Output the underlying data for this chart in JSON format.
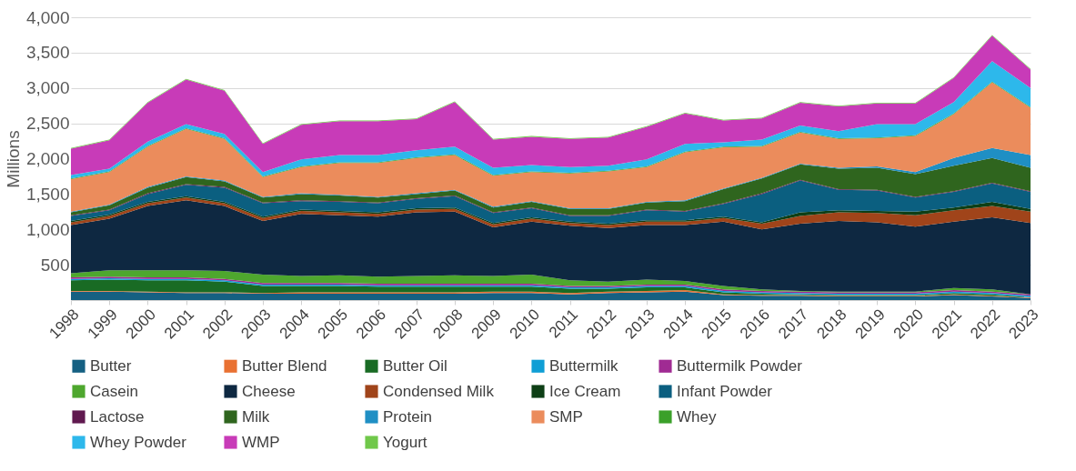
{
  "chart_data": {
    "type": "area",
    "stacked": true,
    "ylabel": "Millions",
    "categories": [
      "1998",
      "1999",
      "2000",
      "2001",
      "2002",
      "2003",
      "2004",
      "2005",
      "2006",
      "2007",
      "2008",
      "2009",
      "2010",
      "2011",
      "2012",
      "2013",
      "2014",
      "2015",
      "2016",
      "2017",
      "2018",
      "2019",
      "2020",
      "2021",
      "2022",
      "2023"
    ],
    "ylim": [
      0,
      4000
    ],
    "yticks": [
      {
        "value": 500,
        "label": "500"
      },
      {
        "value": 1000,
        "label": "1,000"
      },
      {
        "value": 1500,
        "label": "1,500"
      },
      {
        "value": 2000,
        "label": "2,000"
      },
      {
        "value": 2500,
        "label": "2,500"
      },
      {
        "value": 3000,
        "label": "3,000"
      },
      {
        "value": 3500,
        "label": "3,500"
      },
      {
        "value": 4000,
        "label": "4,000"
      }
    ],
    "grid": "y",
    "legend": "bottom",
    "series": [
      {
        "name": "Butter",
        "color": "#156082",
        "values": [
          120,
          120,
          110,
          100,
          100,
          90,
          90,
          90,
          90,
          90,
          90,
          100,
          100,
          80,
          100,
          110,
          120,
          70,
          60,
          60,
          50,
          50,
          50,
          70,
          50,
          30
        ]
      },
      {
        "name": "Butter Blend",
        "color": "#e97132",
        "values": [
          10,
          10,
          10,
          10,
          10,
          10,
          20,
          20,
          20,
          20,
          20,
          20,
          20,
          20,
          20,
          20,
          20,
          10,
          10,
          10,
          10,
          10,
          10,
          10,
          10,
          10
        ]
      },
      {
        "name": "Butter Oil",
        "color": "#196b24",
        "values": [
          150,
          160,
          160,
          170,
          150,
          100,
          90,
          90,
          80,
          80,
          80,
          70,
          70,
          60,
          40,
          50,
          40,
          30,
          20,
          10,
          10,
          10,
          10,
          20,
          20,
          0
        ]
      },
      {
        "name": "Buttermilk",
        "color": "#0f9ed5",
        "values": [
          20,
          20,
          20,
          20,
          20,
          20,
          20,
          20,
          20,
          20,
          20,
          20,
          20,
          20,
          20,
          20,
          20,
          20,
          20,
          20,
          20,
          20,
          20,
          20,
          20,
          20
        ]
      },
      {
        "name": "Buttermilk Powder",
        "color": "#a02b93",
        "values": [
          20,
          20,
          20,
          20,
          20,
          20,
          20,
          20,
          20,
          20,
          20,
          20,
          20,
          20,
          20,
          20,
          20,
          20,
          20,
          20,
          20,
          20,
          20,
          20,
          20,
          20
        ]
      },
      {
        "name": "Casein",
        "color": "#4ea72e",
        "values": [
          60,
          90,
          100,
          100,
          110,
          120,
          100,
          110,
          100,
          110,
          120,
          110,
          130,
          80,
          60,
          70,
          50,
          50,
          20,
          10,
          10,
          10,
          10,
          30,
          30,
          0
        ]
      },
      {
        "name": "Cheese",
        "color": "#0e2841",
        "values": [
          680,
          730,
          910,
          990,
          920,
          760,
          880,
          850,
          850,
          900,
          900,
          690,
          750,
          770,
          760,
          770,
          790,
          910,
          850,
          950,
          1000,
          980,
          920,
          940,
          1020,
          1010
        ]
      },
      {
        "name": "Condensed Milk",
        "color": "#a0441a",
        "values": [
          40,
          40,
          40,
          40,
          40,
          40,
          40,
          40,
          40,
          40,
          40,
          40,
          40,
          40,
          40,
          50,
          50,
          50,
          80,
          110,
          120,
          130,
          160,
          160,
          160,
          160
        ]
      },
      {
        "name": "Ice Cream",
        "color": "#0e3f16",
        "values": [
          20,
          20,
          20,
          20,
          20,
          20,
          20,
          20,
          20,
          20,
          20,
          20,
          20,
          20,
          20,
          20,
          20,
          20,
          20,
          50,
          30,
          30,
          50,
          40,
          60,
          40
        ]
      },
      {
        "name": "Infant Powder",
        "color": "#0b5f80",
        "values": [
          70,
          60,
          110,
          160,
          200,
          190,
          120,
          130,
          130,
          130,
          160,
          140,
          130,
          80,
          110,
          140,
          120,
          180,
          400,
          450,
          290,
          290,
          200,
          220,
          260,
          240
        ]
      },
      {
        "name": "Lactose",
        "color": "#60194f",
        "values": [
          10,
          10,
          10,
          10,
          10,
          10,
          10,
          10,
          10,
          10,
          10,
          10,
          10,
          10,
          10,
          10,
          10,
          10,
          10,
          10,
          10,
          10,
          10,
          10,
          10,
          10
        ]
      },
      {
        "name": "Milk",
        "color": "#2f651e",
        "values": [
          40,
          60,
          80,
          100,
          80,
          70,
          90,
          80,
          70,
          60,
          70,
          70,
          80,
          90,
          90,
          100,
          140,
          200,
          210,
          220,
          290,
          310,
          320,
          360,
          350,
          330
        ]
      },
      {
        "name": "Protein",
        "color": "#1f8fc4",
        "values": [
          10,
          10,
          10,
          10,
          10,
          10,
          10,
          10,
          10,
          10,
          10,
          10,
          10,
          10,
          10,
          10,
          10,
          10,
          10,
          10,
          10,
          20,
          30,
          110,
          140,
          180
        ]
      },
      {
        "name": "SMP",
        "color": "#eb8c5c",
        "values": [
          460,
          460,
          570,
          670,
          590,
          280,
          370,
          450,
          480,
          500,
          490,
          440,
          410,
          490,
          520,
          490,
          680,
          580,
          440,
          440,
          410,
          400,
          510,
          620,
          930,
          670
        ]
      },
      {
        "name": "Whey",
        "color": "#3ba02a",
        "values": [
          10,
          10,
          10,
          10,
          10,
          10,
          10,
          10,
          10,
          10,
          10,
          10,
          10,
          10,
          10,
          10,
          10,
          10,
          10,
          10,
          10,
          10,
          10,
          10,
          10,
          10
        ]
      },
      {
        "name": "Whey Powder",
        "color": "#2db8eb",
        "values": [
          50,
          40,
          60,
          60,
          60,
          60,
          100,
          100,
          100,
          100,
          110,
          100,
          90,
          80,
          70,
          100,
          110,
          60,
          90,
          90,
          100,
          190,
          160,
          160,
          290,
          270
        ]
      },
      {
        "name": "WMP",
        "color": "#c83bb8",
        "values": [
          370,
          400,
          550,
          630,
          610,
          400,
          490,
          480,
          480,
          440,
          630,
          400,
          400,
          400,
          400,
          460,
          430,
          310,
          300,
          320,
          350,
          290,
          290,
          340,
          360,
          260
        ]
      },
      {
        "name": "Yogurt",
        "color": "#70c84a",
        "values": [
          10,
          10,
          10,
          10,
          10,
          10,
          10,
          10,
          10,
          10,
          10,
          10,
          10,
          10,
          10,
          10,
          10,
          10,
          10,
          10,
          10,
          10,
          10,
          10,
          10,
          10
        ]
      }
    ]
  }
}
